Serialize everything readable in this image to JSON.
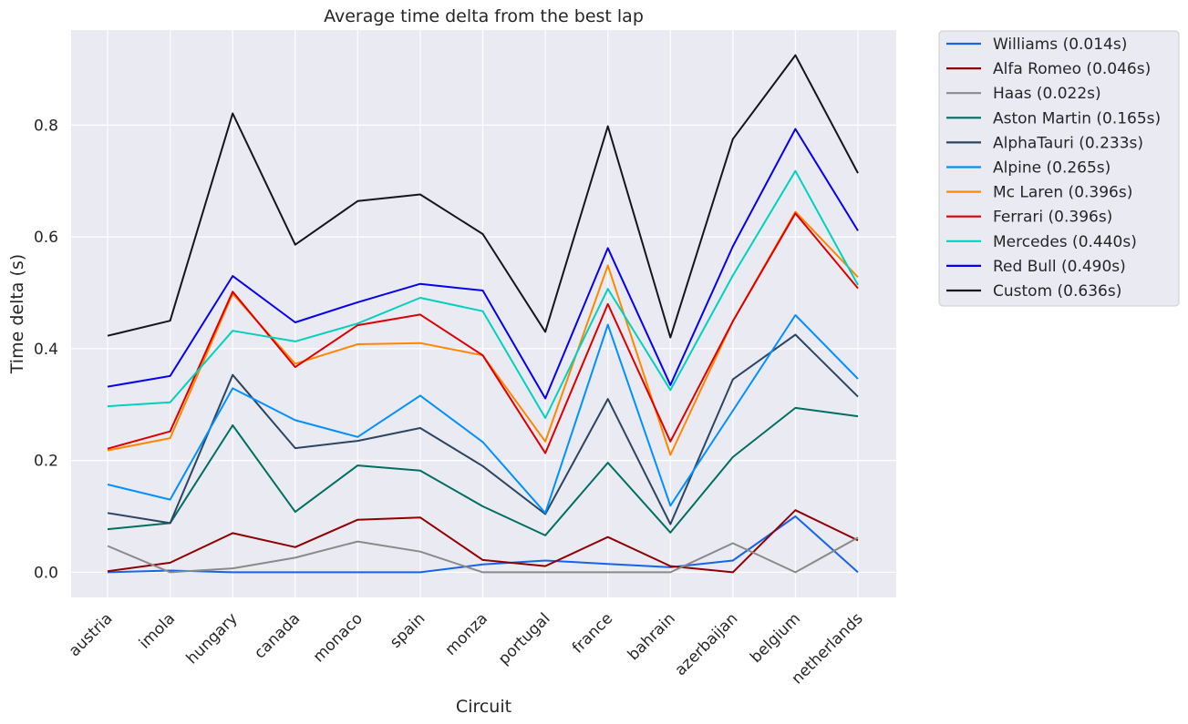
{
  "chart_data": {
    "type": "line",
    "title": "Average time delta from the best lap",
    "xlabel": "Circuit",
    "ylabel": "Time delta (s)",
    "ylim": [
      -0.045,
      0.97
    ],
    "yticks": [
      0.0,
      0.2,
      0.4,
      0.6,
      0.8
    ],
    "ytick_labels": [
      "0.0",
      "0.2",
      "0.4",
      "0.6",
      "0.8"
    ],
    "grid": true,
    "legend_position": "outside-top-right",
    "colors": {
      "plot_background": "#eaeaf2",
      "grid": "#ffffff",
      "text": "#262626"
    },
    "categories": [
      "austria",
      "imola",
      "hungary",
      "canada",
      "monaco",
      "spain",
      "monza",
      "portugal",
      "france",
      "bahrain",
      "azerbaijan",
      "belgium",
      "netherlands"
    ],
    "series": [
      {
        "name": "Williams (0.014s)",
        "color": "#1764e8",
        "values": [
          0.0,
          0.003,
          0.0,
          0.0,
          0.0,
          0.0,
          0.014,
          0.021,
          0.015,
          0.009,
          0.021,
          0.1,
          0.0
        ]
      },
      {
        "name": "Alfa Romeo (0.046s)",
        "color": "#900000",
        "values": [
          0.002,
          0.017,
          0.07,
          0.045,
          0.094,
          0.098,
          0.022,
          0.011,
          0.063,
          0.011,
          0.0,
          0.111,
          0.057
        ]
      },
      {
        "name": "Haas (0.022s)",
        "color": "#8a8a8a",
        "values": [
          0.047,
          0.0,
          0.007,
          0.026,
          0.055,
          0.037,
          0.0,
          0.0,
          0.0,
          0.0,
          0.052,
          0.0,
          0.062
        ]
      },
      {
        "name": "Aston Martin (0.165s)",
        "color": "#006f62",
        "values": [
          0.077,
          0.088,
          0.263,
          0.108,
          0.191,
          0.182,
          0.118,
          0.066,
          0.196,
          0.071,
          0.206,
          0.294,
          0.279
        ]
      },
      {
        "name": "AlphaTauri (0.233s)",
        "color": "#2b4562",
        "values": [
          0.106,
          0.088,
          0.353,
          0.222,
          0.235,
          0.258,
          0.19,
          0.104,
          0.31,
          0.086,
          0.345,
          0.425,
          0.314
        ]
      },
      {
        "name": "Alpine (0.265s)",
        "color": "#0090ff",
        "values": [
          0.157,
          0.13,
          0.329,
          0.272,
          0.242,
          0.316,
          0.233,
          0.106,
          0.443,
          0.119,
          0.289,
          0.46,
          0.346
        ]
      },
      {
        "name": "Mc Laren (0.396s)",
        "color": "#ff8700",
        "values": [
          0.218,
          0.24,
          0.498,
          0.373,
          0.408,
          0.41,
          0.388,
          0.234,
          0.549,
          0.21,
          0.449,
          0.645,
          0.528
        ]
      },
      {
        "name": "Ferrari (0.396s)",
        "color": "#dc0000",
        "values": [
          0.221,
          0.252,
          0.502,
          0.367,
          0.442,
          0.461,
          0.388,
          0.213,
          0.48,
          0.234,
          0.449,
          0.642,
          0.508
        ]
      },
      {
        "name": "Mercedes (0.440s)",
        "color": "#00d2be",
        "values": [
          0.297,
          0.304,
          0.432,
          0.413,
          0.445,
          0.491,
          0.467,
          0.276,
          0.507,
          0.326,
          0.531,
          0.718,
          0.514
        ]
      },
      {
        "name": "Red Bull (0.490s)",
        "color": "#0600ef",
        "values": [
          0.332,
          0.351,
          0.53,
          0.447,
          0.483,
          0.516,
          0.504,
          0.311,
          0.58,
          0.335,
          0.583,
          0.793,
          0.611
        ]
      },
      {
        "name": "Custom (0.636s)",
        "color": "#15151e",
        "values": [
          0.423,
          0.45,
          0.821,
          0.586,
          0.664,
          0.676,
          0.605,
          0.43,
          0.798,
          0.42,
          0.775,
          0.925,
          0.714
        ]
      }
    ]
  }
}
